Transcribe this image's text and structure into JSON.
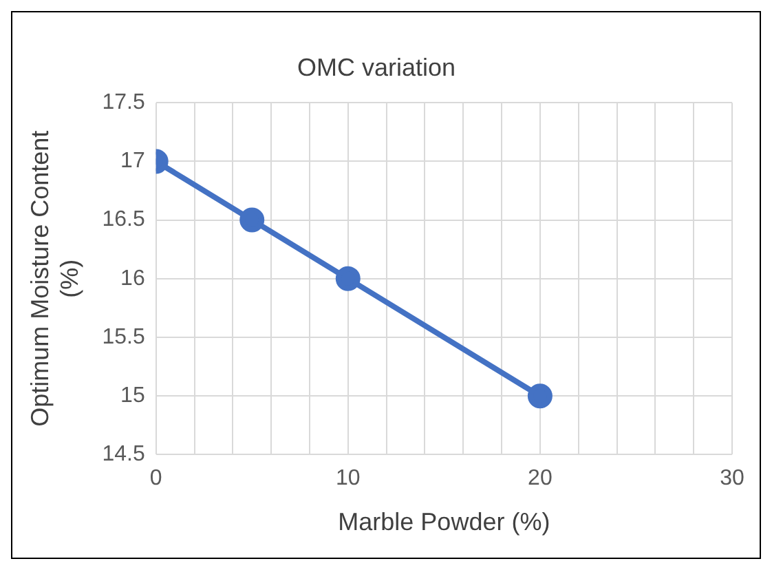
{
  "chart_data": {
    "type": "line",
    "title": "OMC variation",
    "xlabel": "Marble Powder (%)",
    "ylabel": "Optimum Moisture Content (%)",
    "x": [
      0,
      5,
      10,
      20
    ],
    "series": [
      {
        "color": "#4472c4",
        "values": [
          17,
          16.5,
          16,
          15
        ]
      }
    ],
    "xlim": [
      0,
      30
    ],
    "xticks": [
      0,
      {
        "value": 2,
        "label": null
      },
      {
        "value": 4,
        "label": null
      },
      {
        "value": 6,
        "label": null
      },
      {
        "value": 8,
        "label": null
      },
      10,
      {
        "value": 12,
        "label": null
      },
      {
        "value": 14,
        "label": null
      },
      {
        "value": 16,
        "label": null
      },
      {
        "value": 18,
        "label": null
      },
      20,
      {
        "value": 22,
        "label": null
      },
      {
        "value": 24,
        "label": null
      },
      {
        "value": 26,
        "label": null
      },
      {
        "value": 28,
        "label": null
      },
      30
    ],
    "ylim": [
      14.5,
      17.5
    ],
    "yticks": [
      14.5,
      15,
      15.5,
      16,
      16.5,
      17,
      17.5
    ],
    "grid": true,
    "legend": false,
    "marker": "circle",
    "line_style": "solid"
  }
}
